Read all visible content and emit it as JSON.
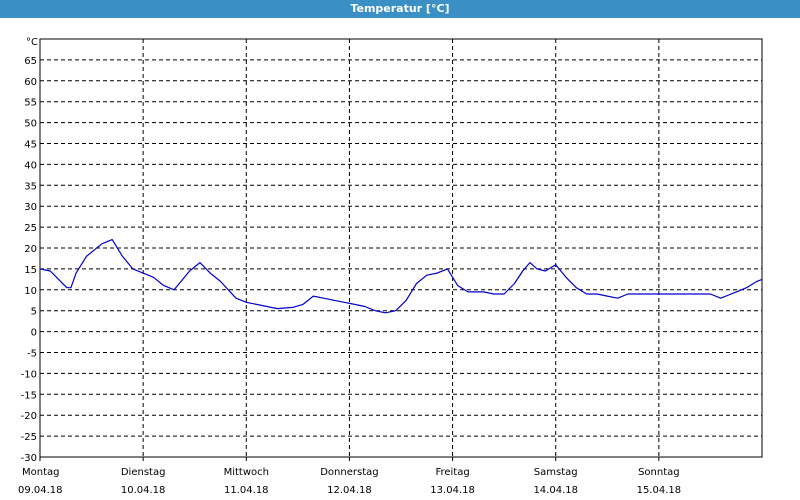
{
  "window": {
    "title": "Temperatur [°C]"
  },
  "chart_data": {
    "type": "line",
    "ylabel": "°C",
    "ylim": [
      -30,
      70
    ],
    "yticks": [
      65,
      60,
      55,
      50,
      45,
      40,
      35,
      30,
      25,
      20,
      15,
      10,
      5,
      0,
      -5,
      -10,
      -15,
      -20,
      -25,
      -30
    ],
    "xlim": [
      0,
      7
    ],
    "grid": true,
    "days": [
      {
        "weekday": "Montag",
        "date": "09.04.18"
      },
      {
        "weekday": "Dienstag",
        "date": "10.04.18"
      },
      {
        "weekday": "Mittwoch",
        "date": "11.04.18"
      },
      {
        "weekday": "Donnerstag",
        "date": "12.04.18"
      },
      {
        "weekday": "Freitag",
        "date": "13.04.18"
      },
      {
        "weekday": "Samstag",
        "date": "14.04.18"
      },
      {
        "weekday": "Sonntag",
        "date": "15.04.18"
      }
    ],
    "series": [
      {
        "color": "#0000cc",
        "x": [
          0,
          0.1,
          0.2,
          0.26,
          0.3,
          0.35,
          0.45,
          0.6,
          0.7,
          0.8,
          0.9,
          1.0,
          1.1,
          1.2,
          1.3,
          1.45,
          1.55,
          1.65,
          1.75,
          1.9,
          2.0,
          2.1,
          2.2,
          2.3,
          2.45,
          2.55,
          2.65,
          2.75,
          2.85,
          2.95,
          3.05,
          3.15,
          3.25,
          3.35,
          3.45,
          3.55,
          3.65,
          3.75,
          3.85,
          3.95,
          4.05,
          4.15,
          4.3,
          4.4,
          4.5,
          4.6,
          4.68,
          4.75,
          4.82,
          4.9,
          5.0,
          5.1,
          5.2,
          5.3,
          5.4,
          5.5,
          5.6,
          5.7,
          5.8,
          5.9,
          6.0,
          6.1,
          6.2,
          6.3,
          6.4,
          6.5,
          6.6,
          6.7,
          6.75,
          6.85,
          6.95,
          7.0
        ],
        "y": [
          15,
          14.5,
          12,
          10.5,
          10.5,
          14,
          18,
          21,
          22,
          18,
          15,
          14,
          13,
          11,
          10,
          14.5,
          16.5,
          14,
          12,
          8,
          7,
          6.5,
          6,
          5.5,
          5.8,
          6.5,
          8.5,
          8,
          7.5,
          7,
          6.5,
          6,
          5,
          4.5,
          5,
          7.5,
          11.5,
          13.5,
          14,
          15,
          11,
          9.5,
          9.5,
          9,
          9,
          11.5,
          14.5,
          16.5,
          15,
          14.5,
          16,
          13,
          10.5,
          9,
          9,
          8.5,
          8,
          9,
          9,
          9,
          9,
          9,
          9,
          9,
          9,
          9,
          8,
          9,
          9.5,
          10.5,
          12,
          12.5
        ]
      }
    ]
  }
}
